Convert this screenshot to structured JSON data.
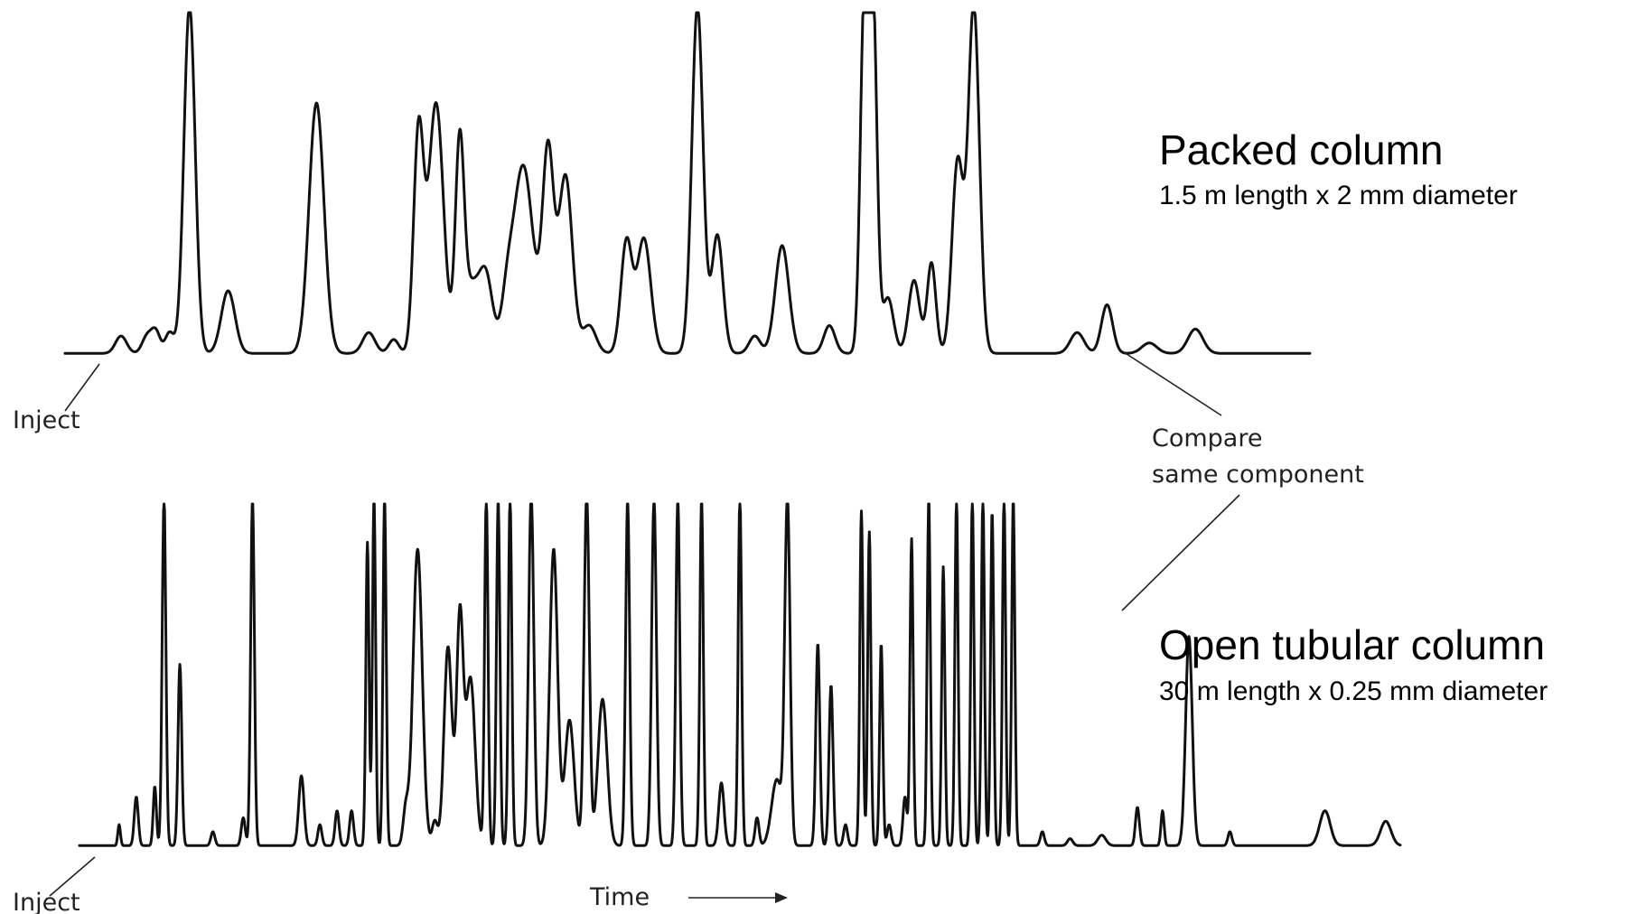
{
  "figure": {
    "packed_title": "Packed column",
    "packed_dims": "1.5 m length x 2 mm diameter",
    "open_title": "Open tubular column",
    "open_dims": "30 m length x 0.25 mm diameter",
    "inject_top": "Inject",
    "inject_bottom": "Inject",
    "compare_line1": "Compare",
    "compare_line2": "same component",
    "time_label": "Time"
  },
  "chart_data": [
    {
      "type": "line",
      "title": "Packed column",
      "subtitle": "1.5 m length x 2 mm diameter",
      "xlabel": "Time",
      "ylabel": "",
      "axes_drawn": false,
      "grid": false,
      "x_range": [
        0,
        100
      ],
      "y_range": [
        0,
        100
      ],
      "baseline": 2,
      "peaks": [
        [
          4.5,
          5,
          0.45
        ],
        [
          6.6,
          5,
          0.4
        ],
        [
          7.3,
          6,
          0.35
        ],
        [
          8.4,
          6,
          0.35
        ],
        [
          10,
          100,
          0.45
        ],
        [
          13.1,
          18,
          0.55
        ],
        [
          20.2,
          72,
          0.6
        ],
        [
          24.4,
          6,
          0.5
        ],
        [
          26.4,
          4,
          0.4
        ],
        [
          28.4,
          63,
          0.4
        ],
        [
          29.8,
          72,
          0.6
        ],
        [
          31.7,
          58,
          0.35
        ],
        [
          32.6,
          18,
          0.6
        ],
        [
          33.8,
          22,
          0.55
        ],
        [
          35.5,
          12,
          0.45
        ],
        [
          36.8,
          54,
          0.8
        ],
        [
          38.8,
          57,
          0.45
        ],
        [
          40.2,
          51,
          0.55
        ],
        [
          42.1,
          8,
          0.55
        ],
        [
          45.1,
          32,
          0.45
        ],
        [
          46.5,
          33,
          0.55
        ],
        [
          50.8,
          100,
          0.45
        ],
        [
          52.4,
          34,
          0.45
        ],
        [
          55.4,
          5,
          0.45
        ],
        [
          57.6,
          31,
          0.55
        ],
        [
          61.4,
          8,
          0.45
        ],
        [
          64.2,
          100,
          0.32
        ],
        [
          64.9,
          100,
          0.32
        ],
        [
          66.1,
          16,
          0.45
        ],
        [
          68.2,
          21,
          0.45
        ],
        [
          69.6,
          26,
          0.35
        ],
        [
          71.7,
          55,
          0.45
        ],
        [
          73,
          100,
          0.45
        ],
        [
          81.3,
          6,
          0.55
        ],
        [
          83.7,
          14,
          0.45
        ],
        [
          87.1,
          3,
          0.6
        ],
        [
          90.8,
          7,
          0.6
        ]
      ]
    },
    {
      "type": "line",
      "title": "Open tubular column",
      "subtitle": "30 m length x 0.25 mm diameter",
      "xlabel": "Time",
      "ylabel": "",
      "axes_drawn": false,
      "grid": false,
      "x_range": [
        0,
        100
      ],
      "y_range": [
        0,
        100
      ],
      "baseline": 2,
      "peaks": [
        [
          3.0,
          6,
          0.1
        ],
        [
          4.3,
          14,
          0.15
        ],
        [
          5.7,
          17,
          0.12
        ],
        [
          6.4,
          100,
          0.14
        ],
        [
          7.6,
          52,
          0.14
        ],
        [
          10.1,
          4,
          0.15
        ],
        [
          12.4,
          8,
          0.15
        ],
        [
          13.1,
          100,
          0.14
        ],
        [
          16.8,
          20,
          0.2
        ],
        [
          18.2,
          6,
          0.15
        ],
        [
          19.5,
          10,
          0.15
        ],
        [
          20.6,
          10,
          0.15
        ],
        [
          21.8,
          87,
          0.12
        ],
        [
          22.3,
          100,
          0.12
        ],
        [
          23.1,
          100,
          0.12
        ],
        [
          24.7,
          10,
          0.2
        ],
        [
          25.6,
          85,
          0.35
        ],
        [
          26.9,
          7,
          0.2
        ],
        [
          27.9,
          57,
          0.3
        ],
        [
          28.8,
          65,
          0.25
        ],
        [
          29.6,
          48,
          0.35
        ],
        [
          30.8,
          100,
          0.13
        ],
        [
          31.7,
          100,
          0.13
        ],
        [
          32.6,
          100,
          0.13
        ],
        [
          34.2,
          100,
          0.2
        ],
        [
          35.9,
          85,
          0.3
        ],
        [
          37.1,
          36,
          0.35
        ],
        [
          38.4,
          100,
          0.2
        ],
        [
          39.6,
          42,
          0.35
        ],
        [
          41.5,
          100,
          0.15
        ],
        [
          43.5,
          100,
          0.18
        ],
        [
          45.3,
          100,
          0.15
        ],
        [
          47.1,
          100,
          0.13
        ],
        [
          48.6,
          18,
          0.2
        ],
        [
          50,
          100,
          0.13
        ],
        [
          51.3,
          8,
          0.15
        ],
        [
          52.8,
          19,
          0.4
        ],
        [
          53.6,
          98,
          0.2
        ],
        [
          55.9,
          58,
          0.15
        ],
        [
          56.9,
          46,
          0.15
        ],
        [
          58,
          6,
          0.15
        ],
        [
          59.2,
          96,
          0.12
        ],
        [
          59.8,
          90,
          0.12
        ],
        [
          60.7,
          58,
          0.12
        ],
        [
          61.3,
          6,
          0.15
        ],
        [
          62.5,
          14,
          0.15
        ],
        [
          63,
          88,
          0.12
        ],
        [
          64.3,
          100,
          0.12
        ],
        [
          65.4,
          80,
          0.12
        ],
        [
          66.4,
          100,
          0.12
        ],
        [
          67.6,
          100,
          0.12
        ],
        [
          68.4,
          100,
          0.12
        ],
        [
          69.1,
          96,
          0.12
        ],
        [
          70,
          100,
          0.12
        ],
        [
          70.7,
          100,
          0.12
        ],
        [
          72.9,
          4,
          0.15
        ],
        [
          75,
          2,
          0.2
        ],
        [
          77.4,
          3,
          0.3
        ],
        [
          80.1,
          11,
          0.15
        ],
        [
          82,
          10,
          0.12
        ],
        [
          84,
          60,
          0.25
        ],
        [
          87.1,
          4,
          0.15
        ],
        [
          94.3,
          10,
          0.4
        ],
        [
          98.9,
          7,
          0.4
        ]
      ]
    }
  ]
}
